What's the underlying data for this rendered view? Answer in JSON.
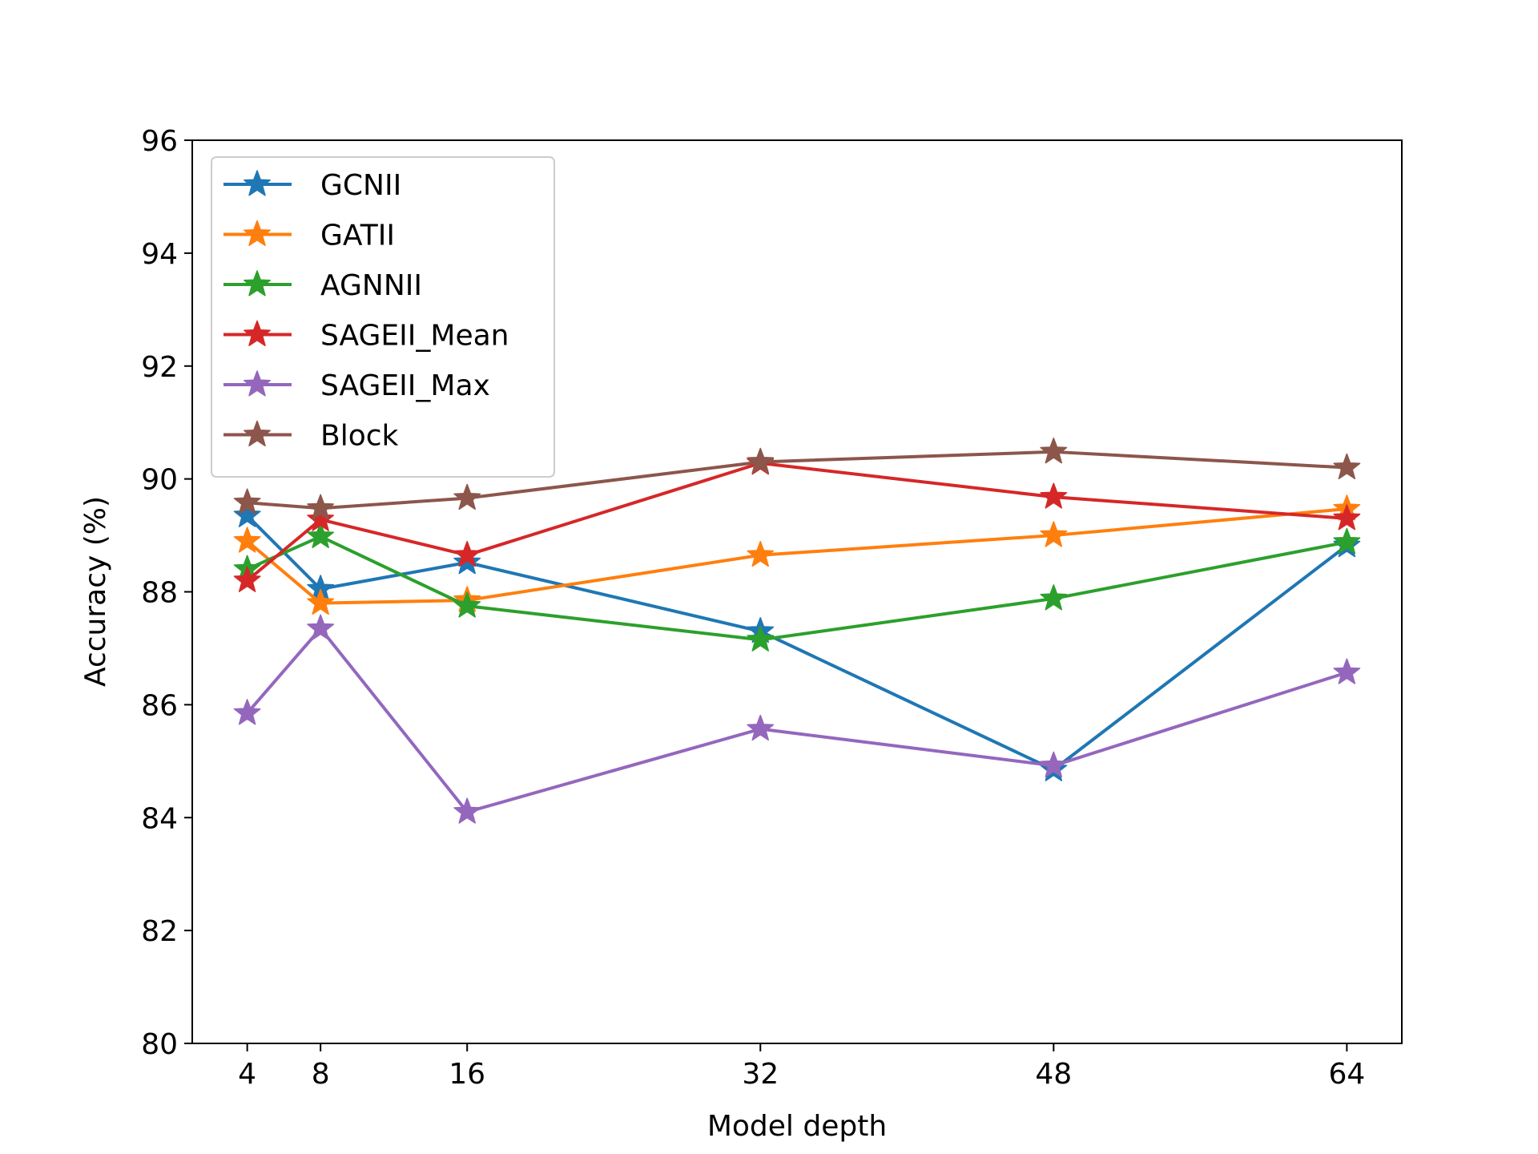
{
  "chart_data": {
    "type": "line",
    "title": "",
    "xlabel": "Model depth",
    "ylabel": "Accuracy (%)",
    "x": [
      4,
      8,
      16,
      32,
      48,
      64
    ],
    "xticks": [
      "4",
      "8",
      "16",
      "32",
      "48",
      "64"
    ],
    "xlim": [
      1,
      67
    ],
    "ylim": [
      80,
      96
    ],
    "yticks": [
      "80",
      "82",
      "84",
      "86",
      "88",
      "90",
      "92",
      "94",
      "96"
    ],
    "grid": false,
    "legend_position": "top-left",
    "marker": "star",
    "series": [
      {
        "name": "GCNII",
        "color": "#1f77b4",
        "values": [
          89.35,
          88.05,
          88.52,
          87.3,
          84.85,
          88.82
        ]
      },
      {
        "name": "GATII",
        "color": "#ff7f0e",
        "values": [
          88.9,
          87.8,
          87.85,
          88.65,
          89.0,
          89.47
        ]
      },
      {
        "name": "AGNNII",
        "color": "#2ca02c",
        "values": [
          88.4,
          88.98,
          87.75,
          87.15,
          87.88,
          88.88
        ]
      },
      {
        "name": "SAGEII_Mean",
        "color": "#d62728",
        "values": [
          88.2,
          89.28,
          88.65,
          90.28,
          89.68,
          89.3
        ]
      },
      {
        "name": "SAGEII_Max",
        "color": "#9467bd",
        "values": [
          85.85,
          87.35,
          84.1,
          85.57,
          84.92,
          86.57
        ]
      },
      {
        "name": "Block",
        "color": "#8c564b",
        "values": [
          89.58,
          89.48,
          89.66,
          90.3,
          90.48,
          90.2
        ]
      }
    ]
  }
}
